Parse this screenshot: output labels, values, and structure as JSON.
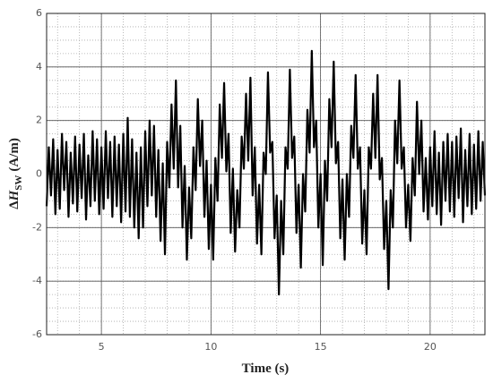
{
  "chart_data": {
    "type": "line",
    "xlabel": "Time (s)",
    "ylabel": {
      "prefix": "Δ",
      "symbol": "H",
      "subscript": "SW",
      "unit": "(A/m)"
    },
    "xlim": [
      2.5,
      22.5
    ],
    "xticks": [
      5,
      10,
      15,
      20
    ],
    "ylim": [
      -6,
      6
    ],
    "yticks": [
      -6,
      -4,
      -2,
      0,
      2,
      4,
      6
    ],
    "grid": true,
    "minor_grid_step": {
      "x": 1,
      "y": 0.5
    },
    "x": [
      2.5,
      2.6,
      2.7,
      2.8,
      2.9,
      3.0,
      3.1,
      3.2,
      3.3,
      3.4,
      3.5,
      3.6,
      3.7,
      3.8,
      3.9,
      4.0,
      4.1,
      4.2,
      4.3,
      4.4,
      4.5,
      4.6,
      4.7,
      4.8,
      4.9,
      5.0,
      5.1,
      5.2,
      5.3,
      5.4,
      5.5,
      5.6,
      5.7,
      5.8,
      5.9,
      6.0,
      6.1,
      6.2,
      6.3,
      6.4,
      6.5,
      6.6,
      6.7,
      6.8,
      6.9,
      7.0,
      7.1,
      7.2,
      7.3,
      7.4,
      7.5,
      7.6,
      7.7,
      7.8,
      7.9,
      8.0,
      8.1,
      8.2,
      8.3,
      8.4,
      8.5,
      8.6,
      8.7,
      8.8,
      8.9,
      9.0,
      9.1,
      9.2,
      9.3,
      9.4,
      9.5,
      9.6,
      9.7,
      9.8,
      9.9,
      10.0,
      10.1,
      10.2,
      10.3,
      10.4,
      10.5,
      10.6,
      10.7,
      10.8,
      10.9,
      11.0,
      11.1,
      11.2,
      11.3,
      11.4,
      11.5,
      11.6,
      11.7,
      11.8,
      11.9,
      12.0,
      12.1,
      12.2,
      12.3,
      12.4,
      12.5,
      12.6,
      12.7,
      12.8,
      12.9,
      13.0,
      13.1,
      13.2,
      13.3,
      13.4,
      13.5,
      13.6,
      13.7,
      13.8,
      13.9,
      14.0,
      14.1,
      14.2,
      14.3,
      14.4,
      14.5,
      14.6,
      14.7,
      14.8,
      14.9,
      15.0,
      15.1,
      15.2,
      15.3,
      15.4,
      15.5,
      15.6,
      15.7,
      15.8,
      15.9,
      16.0,
      16.1,
      16.2,
      16.3,
      16.4,
      16.5,
      16.6,
      16.7,
      16.8,
      16.9,
      17.0,
      17.1,
      17.2,
      17.3,
      17.4,
      17.5,
      17.6,
      17.7,
      17.8,
      17.9,
      18.0,
      18.1,
      18.2,
      18.3,
      18.4,
      18.5,
      18.6,
      18.7,
      18.8,
      18.9,
      19.0,
      19.1,
      19.2,
      19.3,
      19.4,
      19.5,
      19.6,
      19.7,
      19.8,
      19.9,
      20.0,
      20.1,
      20.2,
      20.3,
      20.4,
      20.5,
      20.6,
      20.7,
      20.8,
      20.9,
      21.0,
      21.1,
      21.2,
      21.3,
      21.4,
      21.5,
      21.6,
      21.7,
      21.8,
      21.9,
      22.0,
      22.1,
      22.2,
      22.3,
      22.4,
      22.5
    ],
    "series": [
      {
        "color": "#000000",
        "values": [
          -1.2,
          1.0,
          -0.8,
          1.3,
          -1.5,
          0.9,
          -1.3,
          1.5,
          -0.6,
          1.2,
          -1.6,
          0.8,
          -1.1,
          1.4,
          -1.4,
          1.1,
          -0.9,
          1.5,
          -1.7,
          0.7,
          -1.2,
          1.6,
          -1.0,
          1.3,
          -1.5,
          1.0,
          -1.3,
          1.6,
          -0.9,
          1.2,
          -1.6,
          1.4,
          -1.2,
          1.1,
          -1.8,
          1.5,
          -1.4,
          2.1,
          -1.6,
          1.3,
          -2.0,
          0.8,
          -2.4,
          1.0,
          -2.0,
          1.6,
          -1.2,
          2.0,
          -0.8,
          1.8,
          -1.6,
          0.9,
          -2.5,
          0.4,
          -3.0,
          1.2,
          -0.5,
          2.6,
          0.2,
          3.5,
          -0.5,
          1.8,
          -2.0,
          0.3,
          -3.2,
          -0.5,
          -2.4,
          1.0,
          -0.6,
          2.8,
          0.3,
          2.0,
          -1.6,
          0.5,
          -2.8,
          -0.4,
          -3.2,
          0.6,
          -1.0,
          2.6,
          0.6,
          3.4,
          0.1,
          1.5,
          -2.2,
          0.2,
          -2.9,
          -0.6,
          -2.0,
          1.4,
          0.2,
          3.0,
          0.5,
          3.6,
          -0.8,
          1.0,
          -2.6,
          -0.4,
          -3.0,
          0.8,
          0.0,
          3.8,
          0.8,
          1.2,
          -2.4,
          -0.8,
          -4.5,
          -1.0,
          -3.0,
          1.0,
          0.2,
          3.9,
          0.6,
          1.4,
          -2.2,
          -0.4,
          -3.5,
          0.0,
          -1.4,
          2.4,
          0.8,
          4.6,
          1.0,
          2.0,
          -2.0,
          0.0,
          -3.4,
          0.5,
          -1.0,
          2.8,
          1.0,
          4.2,
          0.4,
          1.2,
          -2.4,
          -0.2,
          -3.2,
          0.0,
          -1.6,
          1.8,
          0.6,
          3.7,
          0.2,
          1.0,
          -2.6,
          -0.6,
          -3.0,
          1.0,
          0.2,
          3.0,
          0.6,
          3.7,
          -0.2,
          0.6,
          -2.8,
          -1.0,
          -4.3,
          -0.6,
          -2.0,
          2.0,
          0.4,
          3.5,
          0.2,
          1.0,
          -2.0,
          -0.4,
          -2.5,
          0.6,
          -0.8,
          2.7,
          0.0,
          2.0,
          -1.4,
          0.6,
          -1.7,
          1.0,
          -1.2,
          1.6,
          -1.5,
          0.8,
          -1.9,
          1.2,
          -1.0,
          1.5,
          -1.4,
          1.2,
          -1.6,
          1.4,
          -0.9,
          1.7,
          -1.8,
          0.9,
          -1.2,
          1.5,
          -1.5,
          1.1,
          -1.3,
          1.6,
          -1.0,
          1.2,
          -0.8
        ]
      }
    ]
  }
}
